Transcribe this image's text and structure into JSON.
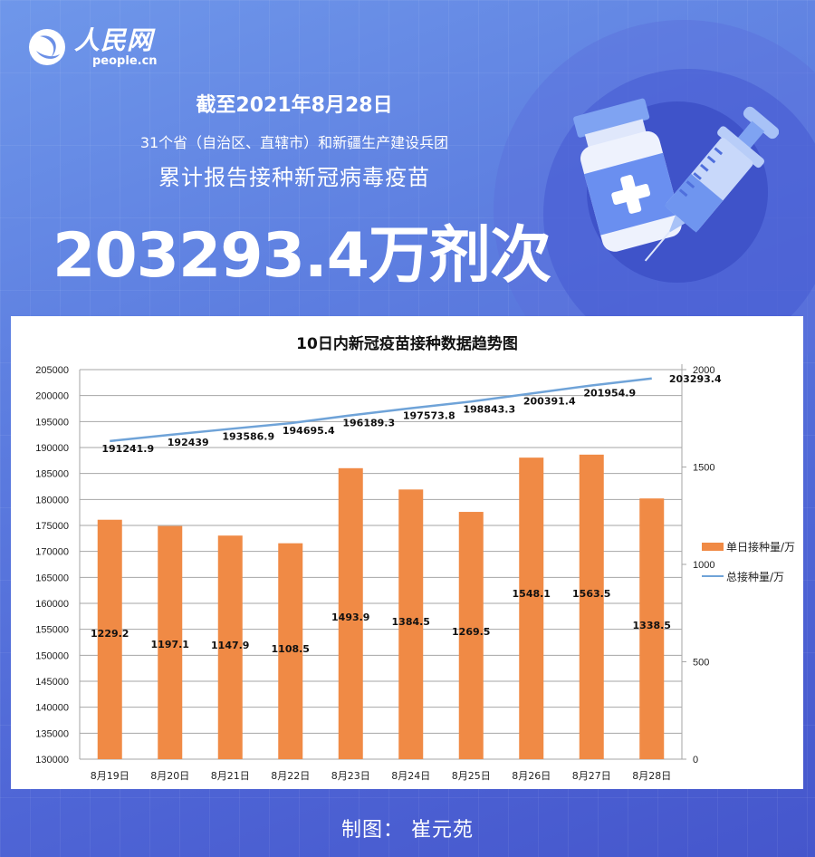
{
  "header": {
    "logo_cn": "人民网",
    "logo_en": "people.cn",
    "as_of": "截至2021年8月28日",
    "scope": "31个省（自治区、直辖市）和新疆生产建设兵团",
    "description": "累计报告接种新冠病毒疫苗",
    "headline_number": "203293.4万剂次"
  },
  "illustration": {
    "icons": [
      "vaccine-vial-icon",
      "syringe-icon"
    ]
  },
  "footer": {
    "credit": "制图：  崔元苑"
  },
  "colors": {
    "bar": "#f08a45",
    "line": "#6fa3d8",
    "background_top": "#6f97ea",
    "background_bottom": "#4556cc"
  },
  "chart_data": {
    "type": "bar",
    "title": "10日内新冠疫苗接种数据趋势图",
    "categories": [
      "8月19日",
      "8月20日",
      "8月21日",
      "8月22日",
      "8月23日",
      "8月24日",
      "8月25日",
      "8月26日",
      "8月27日",
      "8月28日"
    ],
    "series": [
      {
        "name": "单日接种量/万",
        "type": "bar",
        "axis": "right",
        "values": [
          1229.2,
          1197.1,
          1147.9,
          1108.5,
          1493.9,
          1384.5,
          1269.5,
          1548.1,
          1563.5,
          1338.5
        ],
        "labels": [
          "1229.2",
          "1197.1",
          "1147.9",
          "1108.5",
          "1493.9",
          "1384.5",
          "1269.5",
          "1548.1",
          "1563.5",
          "1338.5"
        ]
      },
      {
        "name": "总接种量/万",
        "type": "line",
        "axis": "left",
        "values": [
          191241.9,
          192439,
          193586.9,
          194695.4,
          196189.3,
          197573.8,
          198843.3,
          200391.4,
          201954.9,
          203293.4
        ],
        "labels": [
          "191241.9",
          "192439",
          "193586.9",
          "194695.4",
          "196189.3",
          "197573.8",
          "198843.3",
          "200391.4",
          "201954.9",
          "203293.4"
        ]
      }
    ],
    "left_axis": {
      "range": [
        130000,
        205000
      ],
      "ticks": [
        "205000",
        "200000",
        "195000",
        "190000",
        "185000",
        "180000",
        "175000",
        "170000",
        "165000",
        "160000",
        "155000",
        "150000",
        "145000",
        "140000",
        "135000",
        "130000"
      ]
    },
    "right_axis": {
      "range": [
        0,
        2000
      ],
      "ticks": [
        "2000",
        "1500",
        "1000",
        "500",
        "0"
      ]
    },
    "legend_position": "right",
    "grid": true,
    "xlabel": "",
    "ylabel": ""
  }
}
